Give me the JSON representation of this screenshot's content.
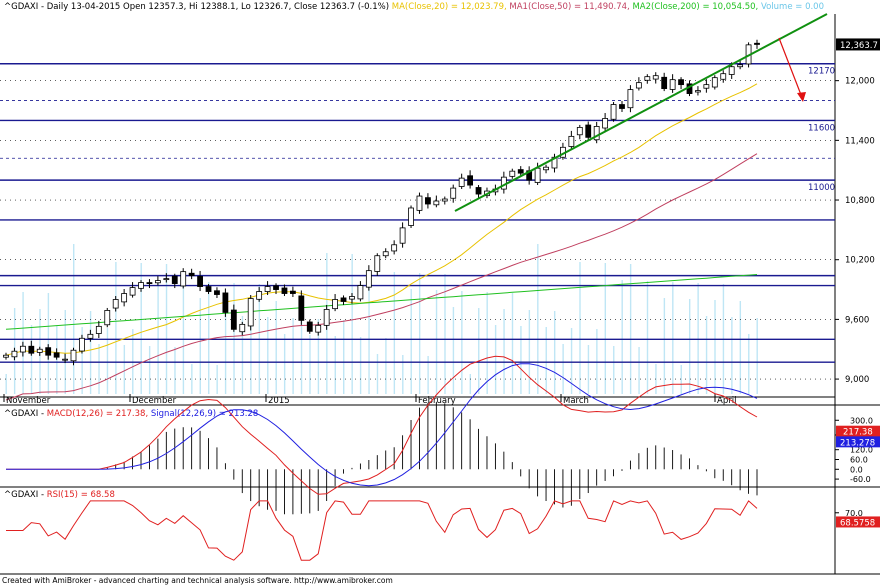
{
  "header": {
    "symbol": "^GDAXI - Daily 13-04-2015 Open 12357.3, Hi 12388.1, Lo 12326.7, Close 12363.7 (-0.1%)",
    "ma": "MA(Close,20) = 12,023.79,",
    "ma1": "MA1(Close,50) = 11,490.74,",
    "ma2": "MA2(Close,200) = 10,054.50,",
    "volume": "Volume = 0.00"
  },
  "macd_header": {
    "prefix": "^GDAXI - ",
    "macd": "MACD(12,26) = 217.38,",
    "signal": "Signal(12,26,9) = 213.28"
  },
  "rsi_header": {
    "prefix": "^GDAXI - ",
    "rsi": "RSI(15) = 68.58"
  },
  "footer": "Created with AmiBroker - advanced charting and technical analysis software. http://www.amibroker.com",
  "colors": {
    "ma20": "#e8c200",
    "ma50": "#c04060",
    "ma200": "#20c020",
    "macd": "#e02020",
    "signal": "#2020e0",
    "rsi": "#e02020",
    "trend": "#109010",
    "hline": "#1a1a90",
    "volume": "#bfe6f5"
  },
  "chart_data": [
    {
      "type": "candlestick",
      "title": "^GDAXI - Daily 13-04-2015",
      "ylim": [
        8850,
        12650
      ],
      "y_ticks": [
        "12,000",
        "11,400",
        "10,800",
        "10,200",
        "9,600",
        "9,000"
      ],
      "x_month_labels": [
        "November",
        "December",
        "2015",
        "February",
        "March",
        "April"
      ],
      "last_price_label": "12,363.7",
      "level_labels": [
        "12170",
        "11600",
        "11000"
      ],
      "horizontal_levels": [
        12170,
        11600,
        11000,
        10600,
        10040,
        9940,
        9400,
        9170
      ],
      "dashed_levels": [
        11800,
        11220
      ],
      "closes": [
        9240,
        9280,
        9330,
        9260,
        9300,
        9240,
        9220,
        9200,
        9290,
        9410,
        9450,
        9530,
        9690,
        9800,
        9860,
        9920,
        9970,
        9960,
        9990,
        10010,
        9960,
        10080,
        10040,
        9930,
        9880,
        9850,
        9670,
        9500,
        9550,
        9810,
        9880,
        9930,
        9900,
        9860,
        9860,
        9590,
        9480,
        9540,
        9700,
        9800,
        9780,
        9830,
        9940,
        10090,
        10240,
        10280,
        10350,
        10520,
        10720,
        10840,
        10760,
        10790,
        10810,
        10920,
        11020,
        10950,
        10860,
        10890,
        10910,
        11030,
        11090,
        11070,
        11000,
        11120,
        11130,
        11230,
        11330,
        11440,
        11530,
        11430,
        11540,
        11620,
        11760,
        11720,
        11910,
        11980,
        12040,
        12050,
        11920,
        12010,
        11960,
        11870,
        11900,
        11960,
        12030,
        12070,
        12140,
        12160,
        12360,
        12364
      ]
    },
    {
      "type": "line",
      "title": "MACD(12,26)",
      "series": [
        {
          "name": "MACD(12,26)",
          "last": 217.38
        },
        {
          "name": "Signal(12,26,9)",
          "last": 213.28
        }
      ],
      "y_ticks": [
        "300.0",
        "210.0",
        "120.0",
        "60.0",
        "0.0",
        "-60.0"
      ],
      "value_labels": [
        "217.38",
        "213.278"
      ]
    },
    {
      "type": "line",
      "title": "RSI(15)",
      "series": [
        {
          "name": "RSI(15)",
          "last": 68.58
        }
      ],
      "y_ticks": [
        "70.0"
      ],
      "value_labels": [
        "68.5758"
      ]
    }
  ]
}
